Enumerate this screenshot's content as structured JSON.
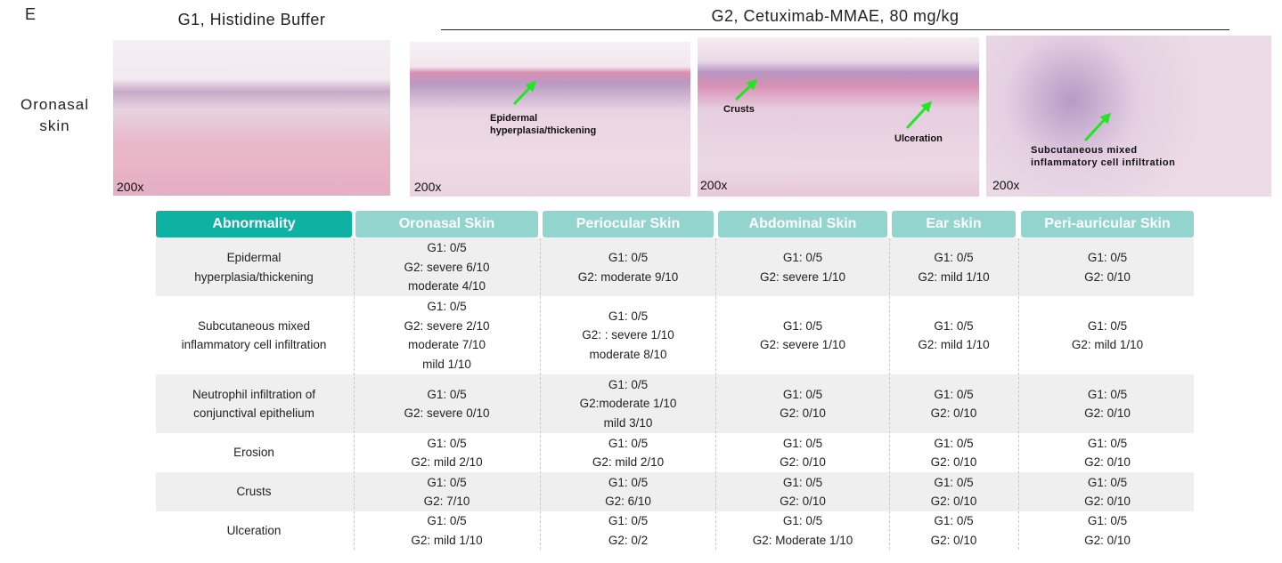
{
  "panel_label": "E",
  "groups": {
    "g1": "G1, Histidine Buffer",
    "g2": "G2, Cetuximab-MMAE, 80 mg/kg"
  },
  "row_label": "Oronasal skin",
  "images": [
    {
      "magnification": "200x"
    },
    {
      "magnification": "200x",
      "annotations": [
        [
          "Epidermal",
          "hyperplasia/thickening"
        ]
      ]
    },
    {
      "magnification": "200x",
      "annotations": [
        [
          "Crusts"
        ],
        [
          "Ulceration"
        ]
      ]
    },
    {
      "magnification": "200x",
      "annotations": [
        [
          "Subcutaneous mixed",
          "inflammatory cell infiltration"
        ]
      ]
    }
  ],
  "table": {
    "headers": [
      "Abnormality",
      "Oronasal Skin",
      "Periocular Skin",
      "Abdominal Skin",
      "Ear skin",
      "Peri-auricular Skin"
    ],
    "rows": [
      {
        "abnormality": [
          "Epidermal",
          "hyperplasia/thickening"
        ],
        "cells": [
          [
            "G1: 0/5",
            "G2: severe 6/10",
            "moderate 4/10"
          ],
          [
            "G1: 0/5",
            "G2: moderate 9/10"
          ],
          [
            "G1: 0/5",
            "G2: severe 1/10"
          ],
          [
            "G1: 0/5",
            "G2: mild 1/10"
          ],
          [
            "G1: 0/5",
            "G2: 0/10"
          ]
        ]
      },
      {
        "abnormality": [
          "Subcutaneous mixed",
          "inflammatory cell infiltration"
        ],
        "cells": [
          [
            "G1: 0/5",
            "G2: severe 2/10",
            "moderate 7/10",
            "mild 1/10"
          ],
          [
            "G1: 0/5",
            "G2: : severe 1/10",
            "moderate 8/10"
          ],
          [
            "G1: 0/5",
            "G2: severe 1/10"
          ],
          [
            "G1: 0/5",
            "G2: mild 1/10"
          ],
          [
            "G1: 0/5",
            "G2: mild 1/10"
          ]
        ]
      },
      {
        "abnormality": [
          "Neutrophil infiltration of",
          "conjunctival epithelium"
        ],
        "cells": [
          [
            "G1: 0/5",
            "G2: severe 0/10"
          ],
          [
            "G1: 0/5",
            "G2:moderate 1/10",
            "mild 3/10"
          ],
          [
            "G1: 0/5",
            "G2: 0/10"
          ],
          [
            "G1: 0/5",
            "G2: 0/10"
          ],
          [
            "G1: 0/5",
            "G2: 0/10"
          ]
        ]
      },
      {
        "abnormality": [
          "Erosion"
        ],
        "cells": [
          [
            "G1: 0/5",
            "G2: mild 2/10"
          ],
          [
            "G1: 0/5",
            "G2: mild 2/10"
          ],
          [
            "G1: 0/5",
            "G2: 0/10"
          ],
          [
            "G1: 0/5",
            "G2: 0/10"
          ],
          [
            "G1: 0/5",
            "G2: 0/10"
          ]
        ]
      },
      {
        "abnormality": [
          "Crusts"
        ],
        "cells": [
          [
            "G1: 0/5",
            "G2: 7/10"
          ],
          [
            "G1: 0/5",
            "G2: 6/10"
          ],
          [
            "G1: 0/5",
            "G2: 0/10"
          ],
          [
            "G1: 0/5",
            "G2: 0/10"
          ],
          [
            "G1: 0/5",
            "G2: 0/10"
          ]
        ]
      },
      {
        "abnormality": [
          "Ulceration"
        ],
        "cells": [
          [
            "G1: 0/5",
            "G2: mild 1/10"
          ],
          [
            "G1: 0/5",
            "G2: 0/2"
          ],
          [
            "G1: 0/5",
            "G2: Moderate 1/10"
          ],
          [
            "G1: 0/5",
            "G2: 0/10"
          ],
          [
            "G1: 0/5",
            "G2: 0/10"
          ]
        ]
      }
    ]
  }
}
